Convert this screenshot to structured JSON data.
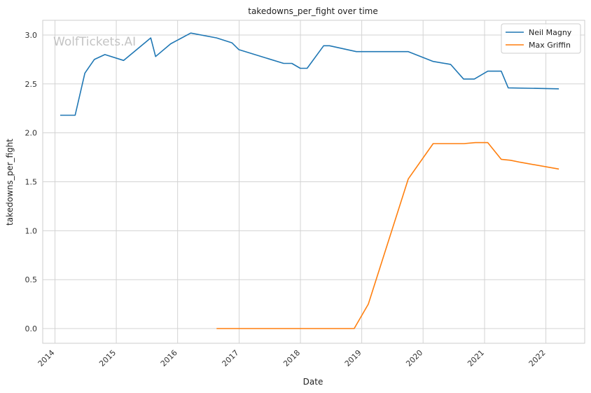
{
  "chart_data": {
    "type": "line",
    "title": "takedowns_per_fight over time",
    "xlabel": "Date",
    "ylabel": "takedowns_per_fight",
    "watermark": "WolfTickets.AI",
    "x_ticks": [
      "2014",
      "2015",
      "2016",
      "2017",
      "2018",
      "2019",
      "2020",
      "2021",
      "2022"
    ],
    "y_ticks": [
      "0.0",
      "0.5",
      "1.0",
      "1.5",
      "2.0",
      "2.5",
      "3.0"
    ],
    "xlim": [
      "2013-10-20",
      "2022-08-20"
    ],
    "ylim": [
      -0.15,
      3.15
    ],
    "grid": true,
    "legend_position": "top-right",
    "series": [
      {
        "name": "Neil Magny",
        "color": "#1f77b4",
        "points": [
          [
            "2014-02-01",
            2.18
          ],
          [
            "2014-05-01",
            2.18
          ],
          [
            "2014-06-28",
            2.61
          ],
          [
            "2014-08-23",
            2.75
          ],
          [
            "2014-10-25",
            2.8
          ],
          [
            "2015-02-14",
            2.74
          ],
          [
            "2015-07-25",
            2.97
          ],
          [
            "2015-08-23",
            2.78
          ],
          [
            "2015-11-21",
            2.91
          ],
          [
            "2016-03-19",
            3.02
          ],
          [
            "2016-08-20",
            2.97
          ],
          [
            "2016-11-19",
            2.92
          ],
          [
            "2016-12-31",
            2.85
          ],
          [
            "2017-09-23",
            2.71
          ],
          [
            "2017-11-11",
            2.71
          ],
          [
            "2017-12-31",
            2.66
          ],
          [
            "2018-02-10",
            2.66
          ],
          [
            "2018-05-19",
            2.89
          ],
          [
            "2018-06-23",
            2.89
          ],
          [
            "2018-11-30",
            2.83
          ],
          [
            "2019-10-05",
            2.83
          ],
          [
            "2020-03-01",
            2.73
          ],
          [
            "2020-06-13",
            2.7
          ],
          [
            "2020-08-29",
            2.55
          ],
          [
            "2020-11-01",
            2.55
          ],
          [
            "2021-01-20",
            2.63
          ],
          [
            "2021-04-10",
            2.63
          ],
          [
            "2021-05-22",
            2.46
          ],
          [
            "2022-03-19",
            2.45
          ]
        ]
      },
      {
        "name": "Max Griffin",
        "color": "#ff7f0e",
        "points": [
          [
            "2016-08-20",
            0.0
          ],
          [
            "2018-11-17",
            0.0
          ],
          [
            "2019-02-09",
            0.25
          ],
          [
            "2019-10-05",
            1.53
          ],
          [
            "2020-03-01",
            1.89
          ],
          [
            "2020-09-01",
            1.89
          ],
          [
            "2020-11-07",
            1.9
          ],
          [
            "2021-01-20",
            1.9
          ],
          [
            "2021-04-10",
            1.73
          ],
          [
            "2021-06-05",
            1.72
          ],
          [
            "2021-08-01",
            1.7
          ],
          [
            "2022-03-19",
            1.63
          ]
        ]
      }
    ]
  }
}
